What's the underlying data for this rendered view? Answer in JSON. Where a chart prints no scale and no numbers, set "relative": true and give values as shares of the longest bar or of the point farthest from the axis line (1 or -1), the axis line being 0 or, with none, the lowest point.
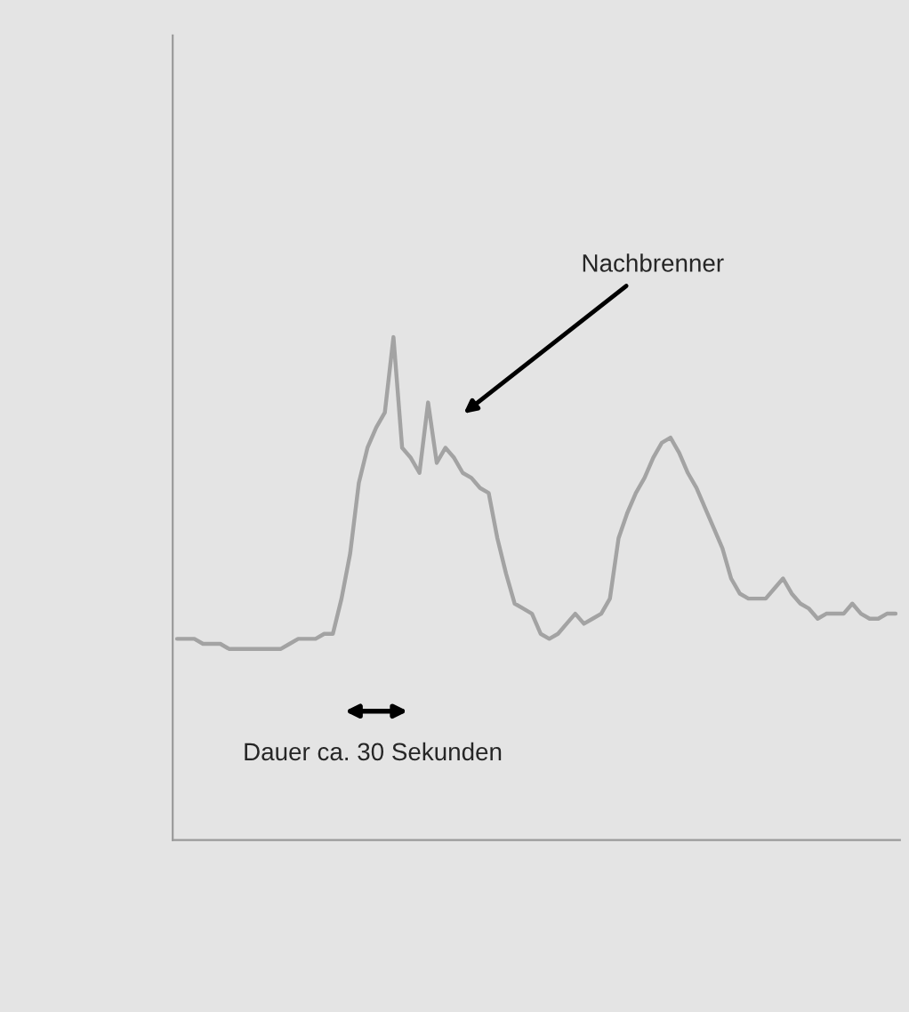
{
  "chart_data": {
    "type": "line",
    "relative": true,
    "grid": false,
    "legend": false,
    "marker": "none",
    "line_style": "solid",
    "categories": [
      null,
      null,
      null,
      null,
      null,
      null,
      null,
      null,
      null,
      null,
      null,
      null,
      null,
      null,
      null,
      null,
      null,
      null,
      null,
      null,
      null,
      null,
      null,
      null,
      null,
      null,
      null,
      null,
      null,
      null,
      null,
      null,
      null,
      null,
      null,
      null,
      null,
      null,
      null,
      null,
      null,
      null,
      null,
      null,
      null,
      null,
      null,
      null,
      null,
      null,
      null,
      null,
      null,
      null,
      null,
      null,
      null,
      null,
      null,
      null,
      null,
      null,
      null,
      null,
      null,
      null,
      null,
      null,
      null,
      null,
      null,
      null,
      null,
      null,
      null,
      null,
      null,
      null,
      null,
      null,
      null,
      null,
      null,
      null
    ],
    "series": [
      {
        "color": "#a3a3a3",
        "values": [
          0.4,
          0.4,
          0.4,
          0.39,
          0.39,
          0.39,
          0.38,
          0.38,
          0.38,
          0.38,
          0.38,
          0.38,
          0.38,
          0.39,
          0.4,
          0.4,
          0.4,
          0.41,
          0.41,
          0.48,
          0.57,
          0.71,
          0.78,
          0.82,
          0.85,
          1,
          0.78,
          0.76,
          0.73,
          0.87,
          0.75,
          0.78,
          0.76,
          0.73,
          0.72,
          0.7,
          0.69,
          0.6,
          0.53,
          0.47,
          0.46,
          0.45,
          0.41,
          0.4,
          0.41,
          0.43,
          0.45,
          0.43,
          0.44,
          0.45,
          0.48,
          0.6,
          0.65,
          0.69,
          0.72,
          0.76,
          0.79,
          0.8,
          0.77,
          0.73,
          0.7,
          0.66,
          0.62,
          0.58,
          0.52,
          0.49,
          0.48,
          0.48,
          0.48,
          0.5,
          0.52,
          0.49,
          0.47,
          0.46,
          0.44,
          0.45,
          0.45,
          0.45,
          0.47,
          0.45,
          0.44,
          0.44,
          0.45,
          0.45
        ]
      }
    ],
    "annotations": [
      "Nachbrenner",
      "Dauer ca. 30 Sekunden"
    ]
  }
}
